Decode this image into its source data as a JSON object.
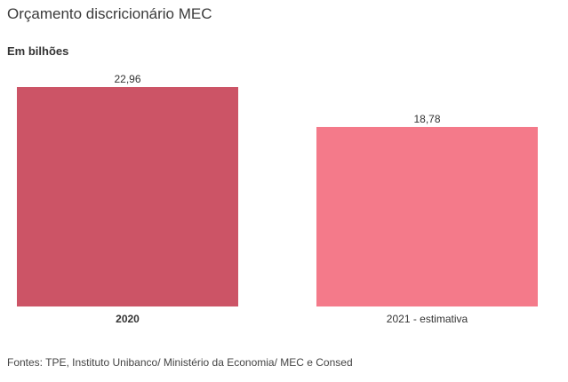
{
  "chart_title": "Orçamento discricionário MEC",
  "unit_label": "Em bilhões",
  "source": "Fontes: TPE, Instituto Unibanco/ Ministério da Economia/ MEC e Consed",
  "chart_data": {
    "type": "bar",
    "title": "Orçamento discricionário MEC",
    "subtitle": "Em bilhões",
    "categories": [
      "2020",
      "2021 - estimativa"
    ],
    "values": [
      22.96,
      18.78
    ],
    "value_labels": [
      "22,96",
      "18,78"
    ],
    "colors": [
      "#cc5466",
      "#f47a8a"
    ],
    "category_bold": [
      true,
      false
    ],
    "xlabel": "",
    "ylabel": "",
    "ylim": [
      0,
      22.96
    ],
    "grid": false,
    "legend": "none"
  }
}
